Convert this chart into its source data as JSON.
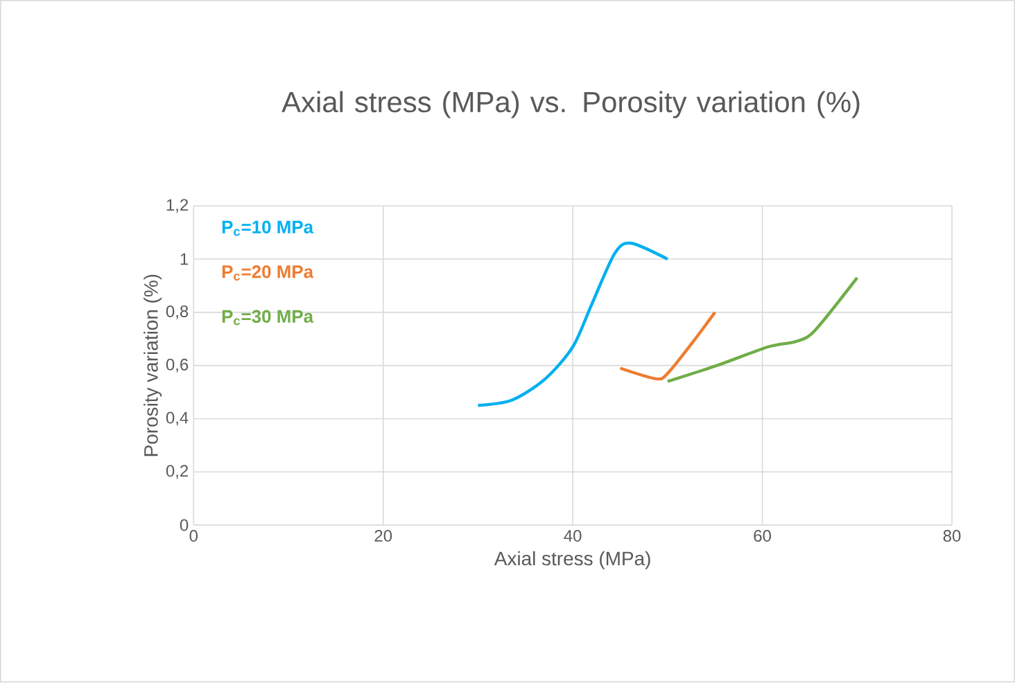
{
  "chart_data": {
    "type": "line",
    "title": "Axial stress (MPa) vs. Porosity variation (%)",
    "xlabel": "Axial stress (MPa)",
    "ylabel": "Porosity variation (%)",
    "xlim": [
      0,
      80
    ],
    "xticks": [
      0,
      20,
      40,
      60,
      80
    ],
    "ylim": [
      0,
      1.2
    ],
    "yticks": [
      0,
      {
        "value": 0.2,
        "label": "0,2"
      },
      {
        "value": 0.4,
        "label": "0,4"
      },
      {
        "value": 0.6,
        "label": "0,6"
      },
      {
        "value": 0.8,
        "label": "0,8"
      },
      1,
      {
        "value": 1.2,
        "label": "1,2"
      }
    ],
    "grid": true,
    "legend": "top left",
    "marker": "none",
    "line_style": "solid",
    "series": [
      {
        "name": "P$_{c}$=10 MPa",
        "color": "#00b0f0",
        "x": [
          30,
          33.6,
          37.1,
          40,
          42,
          44.4,
          46.1,
          50
        ],
        "values": [
          0.45,
          0.47,
          0.55,
          0.67,
          0.83,
          1.02,
          1.06,
          1.0
        ]
      },
      {
        "name": "P$_{c}$=20 MPa",
        "color": "#ed7d31",
        "x": [
          45,
          48.8,
          50,
          52.7,
          55
        ],
        "values": [
          0.59,
          0.55,
          0.57,
          0.69,
          0.8
        ]
      },
      {
        "name": "P$_{c}$=30 MPa",
        "color": "#70ad47",
        "x": [
          50,
          55.2,
          60.6,
          63.5,
          65.5,
          70
        ],
        "values": [
          0.54,
          0.6,
          0.67,
          0.69,
          0.73,
          0.93
        ]
      }
    ]
  }
}
